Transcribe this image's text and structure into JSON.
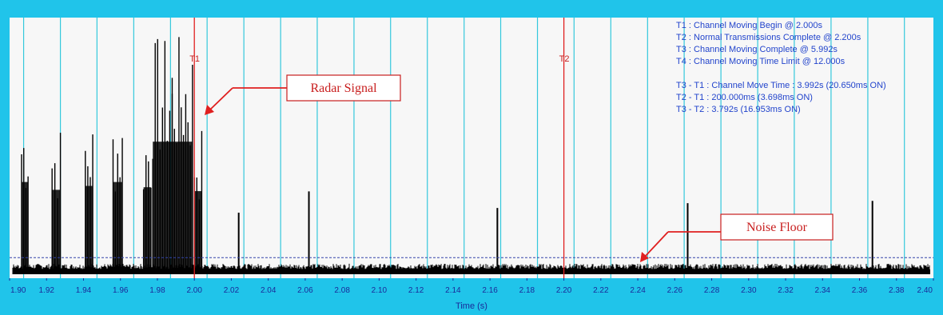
{
  "chart_data": {
    "type": "line",
    "xlabel": "Time (s)",
    "xlim": [
      1.9,
      2.4
    ],
    "x_ticks": [
      "1.90",
      "1.92",
      "1.94",
      "1.96",
      "1.98",
      "2.00",
      "2.02",
      "2.04",
      "2.06",
      "2.08",
      "2.10",
      "2.12",
      "2.14",
      "2.16",
      "2.18",
      "2.20",
      "2.22",
      "2.24",
      "2.26",
      "2.28",
      "2.30",
      "2.32",
      "2.34",
      "2.36",
      "2.38",
      "2.40"
    ],
    "vertical_grid_x": [
      1.9076,
      1.9275,
      1.9473,
      1.9672,
      1.9871,
      2.0069,
      2.0268,
      2.0467,
      2.0665,
      2.0864,
      2.1062,
      2.1261,
      2.146,
      2.1658,
      2.1857,
      2.2055,
      2.2254,
      2.2453,
      2.2651,
      2.285,
      2.3049,
      2.3247,
      2.3446,
      2.3645,
      2.3843
    ],
    "grid": true,
    "noise_floor_threshold": 0.06,
    "burst_groups": [
      {
        "start": 1.9065,
        "end": 1.91,
        "peak": 0.69
      },
      {
        "start": 1.923,
        "end": 1.9275,
        "peak": 0.63
      },
      {
        "start": 1.941,
        "end": 1.945,
        "peak": 0.66
      },
      {
        "start": 1.956,
        "end": 1.961,
        "peak": 0.69
      },
      {
        "start": 1.9725,
        "end": 1.9765,
        "peak": 0.65
      },
      {
        "start": 1.9775,
        "end": 1.988,
        "peak": 1.0
      },
      {
        "start": 1.988,
        "end": 1.999,
        "peak": 1.0
      },
      {
        "start": 2.0,
        "end": 2.004,
        "peak": 0.62
      }
    ],
    "isolated_spikes": [
      {
        "x": 2.024,
        "peak": 0.25
      },
      {
        "x": 2.062,
        "peak": 0.34
      },
      {
        "x": 2.164,
        "peak": 0.27
      },
      {
        "x": 2.267,
        "peak": 0.29
      },
      {
        "x": 2.367,
        "peak": 0.3
      }
    ],
    "cursors": [
      {
        "label": "T1",
        "x": 2.0
      },
      {
        "label": "T2",
        "x": 2.2
      }
    ],
    "info_lines": [
      "T1 : Channel Moving Begin @ 2.000s",
      "T2 : Normal Transmissions Complete @ 2.200s",
      "T3 : Channel Moving Complete @ 5.992s",
      "T4 : Channel Moving Time Limit @ 12.000s",
      "",
      "T3 - T1 : Channel Move Time : 3.992s (20.650ms ON)",
      "T2 - T1 : 200.000ms (3.698ms ON)",
      "T3 - T2 : 3.792s (16.953ms ON)"
    ],
    "annotations": [
      {
        "text": "Radar Signal"
      },
      {
        "text": "Noise Floor"
      }
    ]
  },
  "colors": {
    "frame": "#20c4ea",
    "plot_bg": "#f7f7f7",
    "grid": "#34c8dc",
    "signal": "#000000",
    "cursor": "#e02020",
    "info_text": "#2244cc",
    "callout": "#c81e1e",
    "threshold": "#3344aa"
  }
}
